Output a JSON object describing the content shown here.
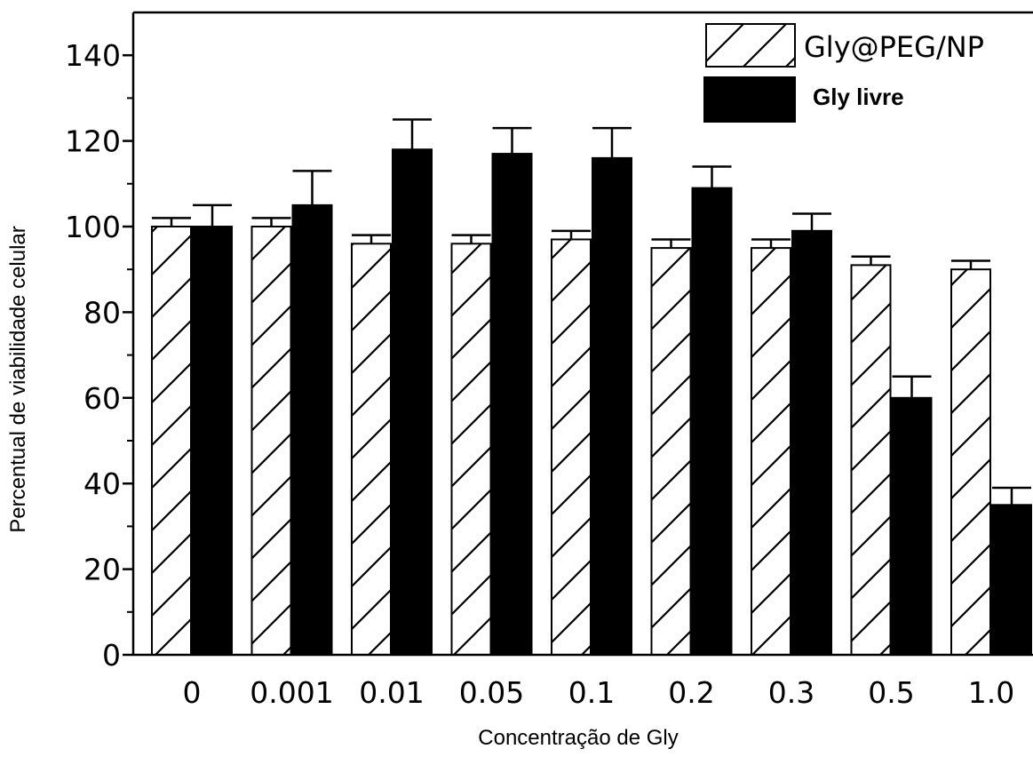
{
  "chart_data": {
    "type": "bar",
    "xlabel": "Concentração de Gly",
    "ylabel": "Percentual de viabilidade celular",
    "categories": [
      "0",
      "0.001",
      "0.01",
      "0.05",
      "0.1",
      "0.2",
      "0.3",
      "0.5",
      "1.0"
    ],
    "ylim": [
      0,
      150
    ],
    "yticks": [
      0,
      20,
      40,
      60,
      80,
      100,
      120,
      140
    ],
    "ytick_labels": [
      "0",
      "20",
      "40",
      "60",
      "80",
      "100",
      "120",
      "140"
    ],
    "legend_position": "top-right",
    "grid": false,
    "series": [
      {
        "name": "Gly@PEG/NP",
        "fill": "hatched",
        "color": "#000000",
        "values": [
          100,
          100,
          96,
          96,
          97,
          95,
          95,
          91,
          90
        ],
        "errors": [
          2,
          2,
          2,
          2,
          2,
          2,
          2,
          2,
          2
        ]
      },
      {
        "name": "Gly livre",
        "fill": "solid",
        "color": "#000000",
        "values": [
          100,
          105,
          118,
          117,
          116,
          109,
          99,
          60,
          35
        ],
        "errors": [
          5,
          8,
          7,
          6,
          7,
          5,
          4,
          5,
          4
        ]
      }
    ]
  }
}
